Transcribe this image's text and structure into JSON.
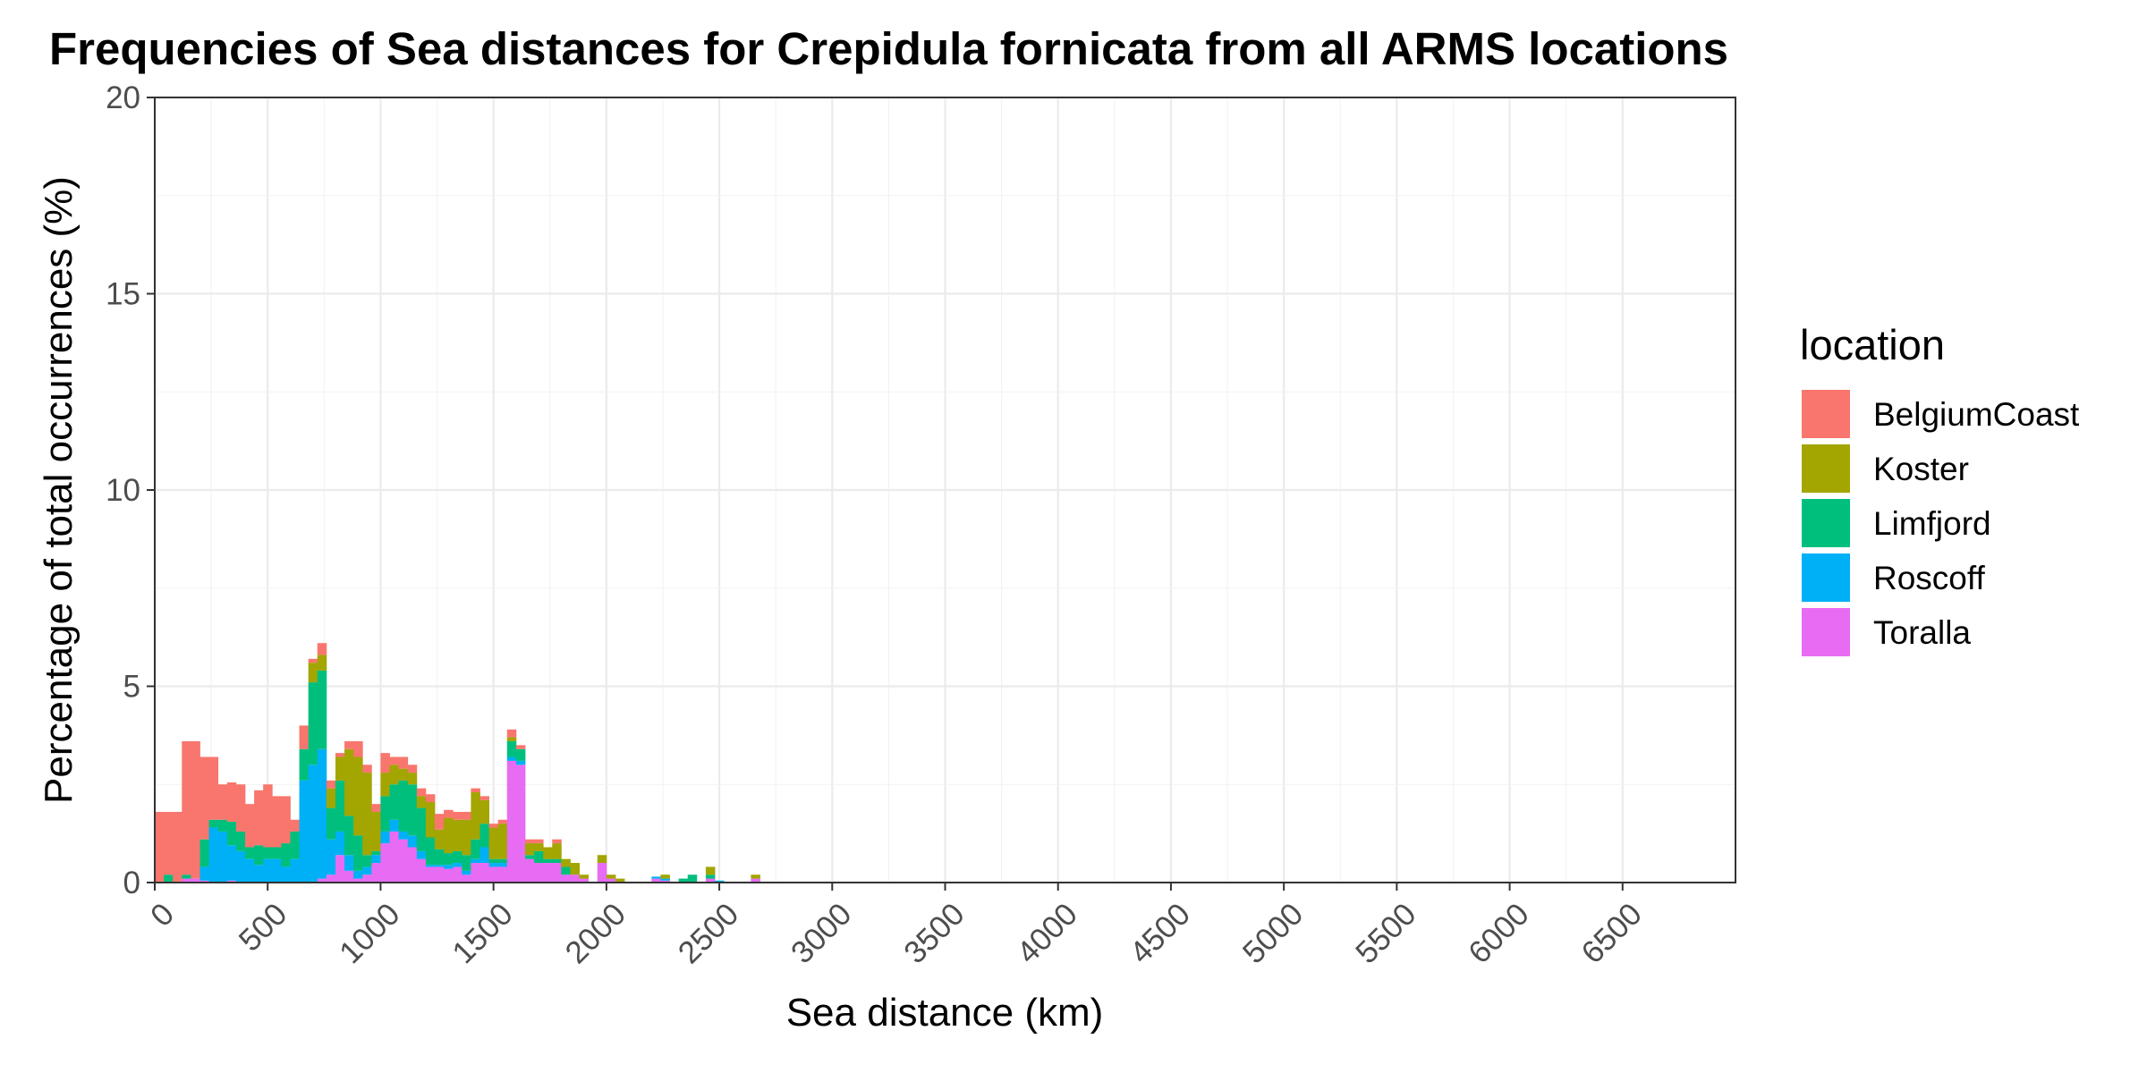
{
  "chart_data": {
    "type": "bar",
    "stacked": true,
    "title": "Frequencies of Sea distances for Crepidula fornicata from all ARMS locations",
    "xlabel": "Sea distance (km)",
    "ylabel": "Percentage of total occurrences (%)",
    "xlim": [
      0,
      7000
    ],
    "ylim": [
      0,
      20
    ],
    "x_ticks": [
      0,
      500,
      1000,
      1500,
      2000,
      2500,
      3000,
      3500,
      4000,
      4500,
      5000,
      5500,
      6000,
      6500
    ],
    "x_tick_labels": [
      "0",
      "500",
      "1000",
      "1500",
      "2000",
      "2500",
      "3000",
      "3500",
      "4000",
      "4500",
      "5000",
      "5500",
      "6000",
      "6500"
    ],
    "y_ticks": [
      0,
      5,
      10,
      15,
      20
    ],
    "y_tick_labels": [
      "0",
      "5",
      "10",
      "15",
      "20"
    ],
    "grid": true,
    "legend": {
      "title": "location",
      "position": "right"
    },
    "bin_width_km": 40,
    "x_bin_start_km": [
      0,
      40,
      80,
      120,
      160,
      200,
      240,
      280,
      320,
      360,
      400,
      440,
      480,
      520,
      560,
      600,
      640,
      680,
      720,
      760,
      800,
      840,
      880,
      920,
      960,
      1000,
      1040,
      1080,
      1120,
      1160,
      1200,
      1240,
      1280,
      1320,
      1360,
      1400,
      1440,
      1480,
      1520,
      1560,
      1600,
      1640,
      1680,
      1720,
      1760,
      1800,
      1840,
      1880,
      1920,
      1960,
      2000,
      2040,
      2080,
      2120,
      2160,
      2200,
      2240,
      2280,
      2320,
      2360,
      2400,
      2440,
      2480,
      2520,
      2560,
      2600,
      2640
    ],
    "series": [
      {
        "name": "Toralla",
        "color": "#E76BF3",
        "values": [
          0,
          0,
          0,
          0.1,
          0.1,
          0.05,
          0,
          0,
          0.05,
          0,
          0,
          0,
          0,
          0,
          0,
          0,
          0,
          0,
          0.1,
          0.2,
          0.7,
          0.3,
          0.1,
          0.2,
          0.5,
          1.0,
          1.3,
          1.1,
          0.9,
          0.6,
          0.4,
          0.4,
          0.35,
          0.4,
          0.2,
          0.5,
          0.5,
          0.4,
          0.4,
          3.1,
          3.0,
          0.6,
          0.5,
          0.5,
          0.5,
          0.2,
          0.2,
          0.1,
          0,
          0.5,
          0.1,
          0,
          0,
          0,
          0,
          0.1,
          0.05,
          0,
          0,
          0,
          0,
          0.1,
          0,
          0,
          0,
          0,
          0.1
        ]
      },
      {
        "name": "Roscoff",
        "color": "#00B0F6",
        "values": [
          0,
          0,
          0,
          0,
          0,
          0.35,
          1.4,
          1.3,
          0.9,
          0.8,
          0.6,
          0.45,
          0.6,
          0.6,
          0.4,
          0.6,
          2.6,
          3.0,
          3.3,
          0.9,
          0.6,
          0.4,
          0.2,
          0.2,
          0.2,
          0.3,
          0.3,
          0.2,
          0.3,
          0.2,
          0.05,
          0.05,
          0.1,
          0.1,
          0.1,
          0.1,
          0.4,
          0.1,
          0.1,
          0.1,
          0.1,
          0,
          0,
          0,
          0,
          0,
          0,
          0,
          0,
          0,
          0,
          0,
          0,
          0,
          0,
          0.05,
          0.05,
          0,
          0,
          0,
          0,
          0,
          0.05,
          0,
          0,
          0,
          0
        ]
      },
      {
        "name": "Limfjord",
        "color": "#00BF7D",
        "values": [
          0,
          0.2,
          0,
          0.1,
          0,
          0.7,
          0.2,
          0.3,
          0.6,
          0.5,
          0.3,
          0.5,
          0.3,
          0.3,
          0.6,
          0.7,
          0.8,
          2.1,
          2.0,
          0.8,
          1.3,
          1.0,
          0.9,
          0.3,
          0.1,
          0.9,
          0.9,
          1.3,
          1.3,
          1.1,
          0.7,
          0.4,
          0.3,
          0.3,
          0.4,
          0.5,
          0.6,
          0.1,
          0.1,
          0.4,
          0.3,
          0.1,
          0.3,
          0.1,
          0.1,
          0.2,
          0,
          0,
          0,
          0,
          0,
          0,
          0,
          0,
          0,
          0,
          0,
          0,
          0.1,
          0.2,
          0,
          0.1,
          0,
          0,
          0,
          0,
          0
        ]
      },
      {
        "name": "Koster",
        "color": "#A3A500",
        "values": [
          0,
          0,
          0,
          0,
          0,
          0,
          0,
          0,
          0,
          0,
          0,
          0,
          0,
          0,
          0,
          0,
          0,
          0.5,
          0.4,
          0.5,
          0.6,
          1.7,
          2.0,
          2.1,
          1.0,
          0.6,
          0.5,
          0.3,
          0.3,
          0.3,
          0.9,
          0.5,
          0.9,
          0.8,
          0.9,
          1.2,
          0.6,
          0.8,
          0.9,
          0.1,
          0,
          0.3,
          0.2,
          0.3,
          0.4,
          0.2,
          0.3,
          0.1,
          0,
          0.2,
          0.1,
          0.1,
          0,
          0,
          0,
          0,
          0.1,
          0,
          0,
          0,
          0,
          0.2,
          0,
          0,
          0,
          0,
          0.1
        ]
      },
      {
        "name": "BelgiumCoast",
        "color": "#F8766D",
        "values": [
          1.8,
          1.6,
          1.8,
          3.4,
          3.5,
          2.1,
          1.6,
          0.9,
          1.0,
          1.2,
          1.1,
          1.4,
          1.6,
          1.3,
          1.2,
          0.3,
          0.6,
          0.1,
          0.3,
          0.2,
          0.1,
          0.2,
          0.4,
          0.2,
          0.2,
          0.5,
          0.2,
          0.3,
          0.2,
          0.2,
          0.2,
          0.4,
          0.2,
          0.2,
          0.2,
          0.1,
          0.1,
          0.1,
          0.1,
          0.2,
          0.1,
          0.1,
          0.1,
          0,
          0.1,
          0,
          0,
          0,
          0,
          0,
          0,
          0,
          0,
          0,
          0,
          0,
          0,
          0,
          0,
          0,
          0,
          0,
          0,
          0,
          0,
          0,
          0
        ]
      }
    ]
  }
}
